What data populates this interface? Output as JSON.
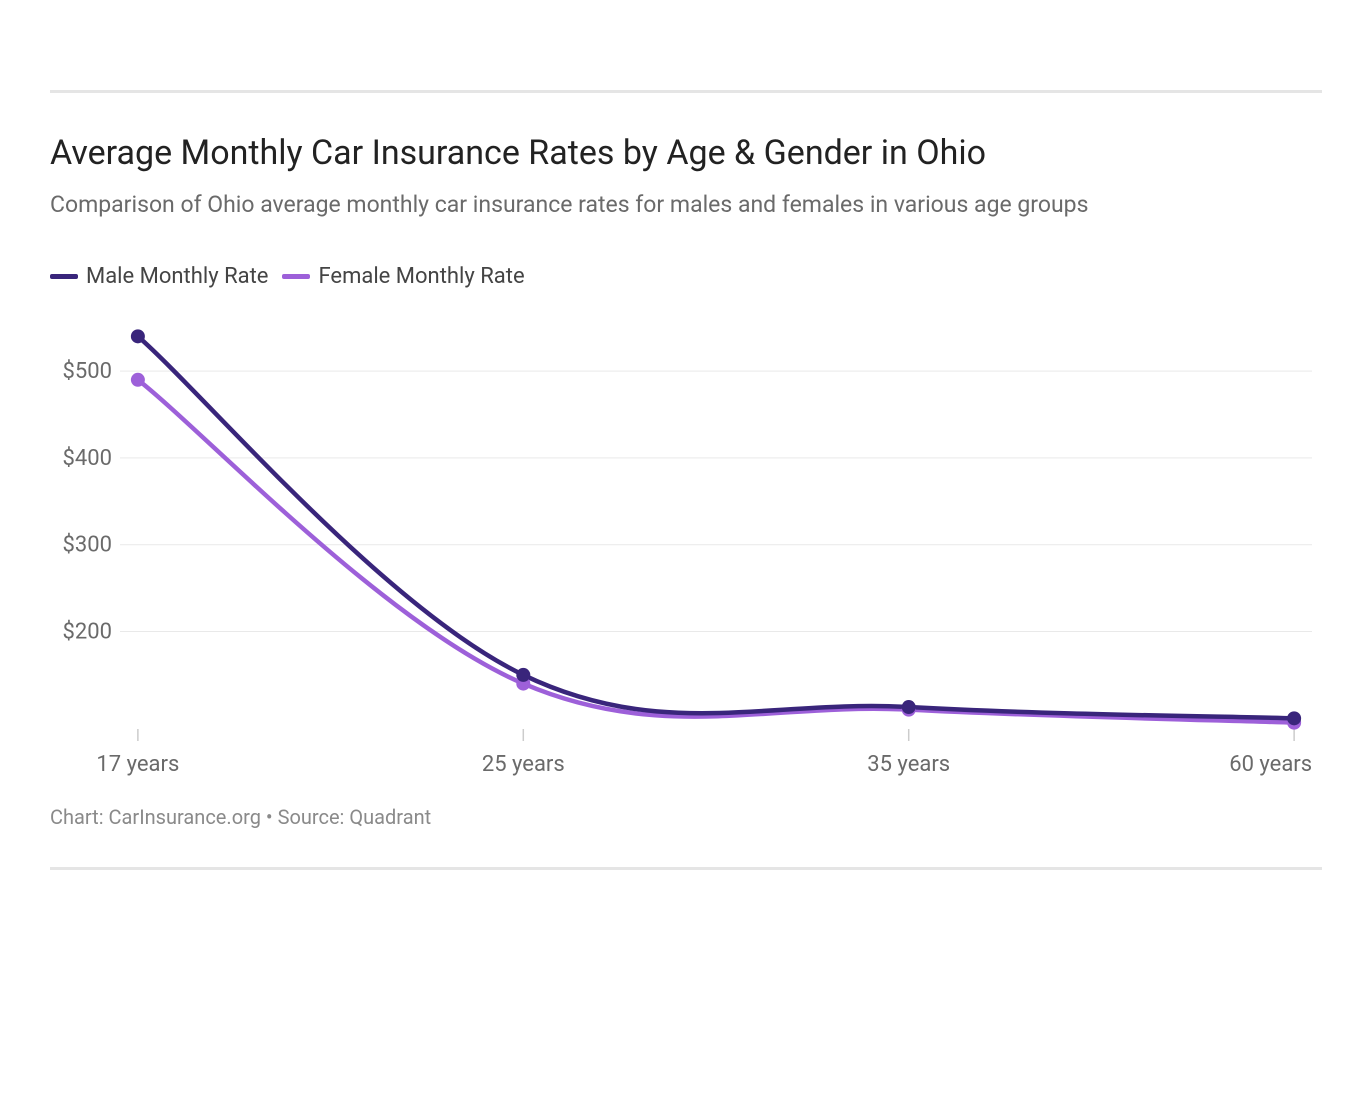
{
  "title": "Average Monthly Car Insurance Rates by Age & Gender in Ohio",
  "subtitle": "Comparison of Ohio average monthly car insurance rates for males and females in various age groups",
  "credit": "Chart: CarInsurance.org • Source: Quadrant",
  "chart": {
    "type": "line",
    "background_color": "#ffffff",
    "grid_color": "#e9e9e9",
    "grid_line_width": 1,
    "line_width": 4.5,
    "marker_radius": 7,
    "marker_style": "circle",
    "font_family": "Helvetica Neue, Arial, sans-serif",
    "axis_label_fontsize": 22,
    "axis_label_color": "#6a6a6a",
    "tick_mark_color": "#cccccc",
    "x": {
      "categories": [
        "17 years",
        "25 years",
        "35 years",
        "60 years"
      ]
    },
    "y": {
      "min": 90,
      "max": 560,
      "ticks": [
        200,
        300,
        400,
        500
      ],
      "tick_prefix": "$"
    },
    "legend": {
      "position": "top-left",
      "fontsize": 22,
      "text_color": "#444444",
      "swatch_width": 28,
      "swatch_height": 5
    },
    "series": [
      {
        "name": "Male Monthly Rate",
        "color": "#39257b",
        "values": [
          540,
          150,
          113,
          100
        ]
      },
      {
        "name": "Female Monthly Rate",
        "color": "#9d60d9",
        "values": [
          490,
          140,
          110,
          95
        ]
      }
    ]
  },
  "divider_color": "#e5e5e5"
}
